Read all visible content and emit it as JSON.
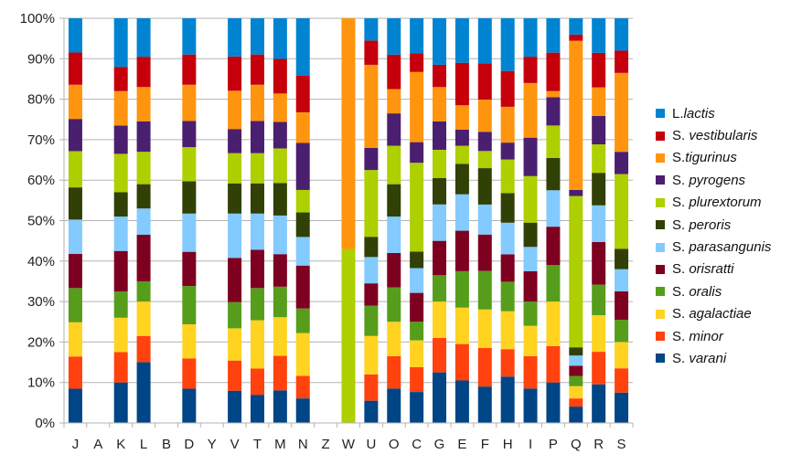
{
  "chart_data": {
    "type": "bar",
    "stacked": true,
    "percent_stacked": true,
    "ylim": [
      0,
      100
    ],
    "yticks": [
      "0%",
      "10%",
      "20%",
      "30%",
      "40%",
      "50%",
      "60%",
      "70%",
      "80%",
      "90%",
      "100%"
    ],
    "grid": true,
    "legend_position": "right",
    "categories": [
      "J",
      "A",
      "K",
      "L",
      "B",
      "D",
      "Y",
      "V",
      "T",
      "M",
      "N",
      "Z",
      "W",
      "U",
      "O",
      "C",
      "G",
      "E",
      "F",
      "H",
      "I",
      "P",
      "Q",
      "R",
      "S"
    ],
    "series": [
      {
        "name": "S. varani",
        "color": "#004586",
        "values": [
          8.5,
          0,
          10,
          15,
          0,
          8.5,
          0,
          8,
          7,
          8,
          6,
          0,
          0,
          5.5,
          8.5,
          7.5,
          12.5,
          10.5,
          8.5,
          11,
          8.5,
          10,
          4,
          9.5,
          7.5
        ]
      },
      {
        "name": "S. minor",
        "color": "#ff420e",
        "values": [
          8,
          0,
          7.5,
          6.5,
          0,
          7.5,
          0,
          7.5,
          6.5,
          8.5,
          5.5,
          0,
          0,
          6.5,
          8,
          6,
          8.5,
          9,
          9,
          6.5,
          8,
          9,
          2,
          8,
          6
        ]
      },
      {
        "name": "S. agalactiae",
        "color": "#ffd320",
        "values": [
          8.5,
          0,
          8.5,
          8.5,
          0,
          8.5,
          0,
          8,
          12,
          9.5,
          10.5,
          0,
          0,
          9.5,
          8.5,
          6.5,
          9,
          9,
          9,
          9,
          7.5,
          11,
          3,
          9,
          6.5
        ]
      },
      {
        "name": "S. oralis",
        "color": "#579d1c",
        "values": [
          8.5,
          0,
          6.5,
          5,
          0,
          9.5,
          0,
          6.5,
          8,
          7.5,
          6,
          0,
          0,
          7.5,
          8.5,
          4.5,
          6.5,
          9,
          9,
          7,
          6,
          9,
          2.5,
          7.5,
          5.5
        ]
      },
      {
        "name": "S. orisratti",
        "color": "#7e0021",
        "values": [
          8.5,
          0,
          10,
          11.5,
          0,
          8.5,
          0,
          11,
          9.5,
          8,
          10.5,
          0,
          0,
          5.5,
          8.5,
          7,
          8.5,
          10,
          8.5,
          6.5,
          7.5,
          9.5,
          2.5,
          10.5,
          7
        ]
      },
      {
        "name": "S. parasangunis",
        "color": "#83caff",
        "values": [
          8.5,
          0,
          8.5,
          6.5,
          0,
          9.5,
          0,
          11,
          9,
          9.5,
          7,
          0,
          0,
          6.5,
          9,
          6,
          9,
          9,
          7,
          7.5,
          6,
          9,
          2.5,
          9,
          5.5
        ]
      },
      {
        "name": "S. peroris",
        "color": "#314004",
        "values": [
          8,
          0,
          6,
          6,
          0,
          8,
          0,
          7.5,
          7.5,
          8,
          6,
          0,
          0,
          5,
          8,
          4,
          6.5,
          7.5,
          8.5,
          7,
          6,
          8,
          2,
          8,
          5
        ]
      },
      {
        "name": "S. plurextorum",
        "color": "#aecf00",
        "values": [
          9,
          0,
          9.5,
          8,
          0,
          8.5,
          0,
          7.5,
          7.5,
          8.5,
          5.5,
          0,
          43,
          16.5,
          9.5,
          21.5,
          7,
          4.5,
          4,
          8,
          11.5,
          8,
          37,
          7,
          18.5
        ]
      },
      {
        "name": "S. pyrogens",
        "color": "#4b1f6f",
        "values": [
          8,
          0,
          7,
          7.5,
          0,
          6.5,
          0,
          6,
          8,
          6.5,
          11.5,
          0,
          0,
          5.5,
          8,
          5,
          7,
          4,
          4.5,
          4,
          9.5,
          7,
          1.5,
          7,
          5.5
        ]
      },
      {
        "name": "S.tigurinus",
        "color": "#ff950e",
        "values": [
          8.5,
          0,
          8.5,
          8.5,
          0,
          9,
          0,
          9.5,
          9,
          7,
          7.5,
          0,
          57,
          20.5,
          6,
          17,
          8.5,
          6,
          7.5,
          8.5,
          13.5,
          1.5,
          36.5,
          7,
          19.5
        ]
      },
      {
        "name": "S. vestibularis",
        "color": "#c5000b",
        "values": [
          8,
          0,
          6,
          7.5,
          0,
          7.5,
          0,
          8.5,
          7.5,
          8.5,
          9,
          0,
          0,
          6,
          8.5,
          4.5,
          5.5,
          10.5,
          8.5,
          8.5,
          6.5,
          9.5,
          1.5,
          8.5,
          5.5
        ]
      },
      {
        "name": "L.lactis",
        "color": "#0084d1",
        "values": [
          8.5,
          0,
          12,
          9.5,
          0,
          9,
          0,
          9.5,
          9,
          10,
          14,
          0,
          0,
          5.5,
          9,
          8.5,
          11.5,
          11,
          10.5,
          12.5,
          9.5,
          8.5,
          4,
          8.5,
          8
        ]
      }
    ]
  }
}
